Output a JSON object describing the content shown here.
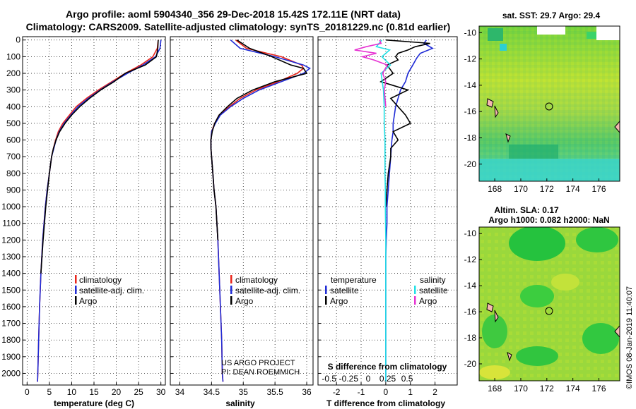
{
  "title_line1": "Argo profile: aoml 5904340_356 29-Dec-2018 15.42S 172.11E (NRT data)",
  "title_line2": "Climatology: CARS2009. Satellite-adjusted climatology: synTS_20181229.nc (0.81d earlier)",
  "colors": {
    "climatology": "#e8241a",
    "satellite": "#1f2bd6",
    "argo": "#000000",
    "sat_salinity": "#22e0e6",
    "argo_salinity": "#e632d2"
  },
  "depth_ticks": [
    "0",
    "100",
    "200",
    "300",
    "400",
    "500",
    "600",
    "700",
    "800",
    "900",
    "1000",
    "1100",
    "1200",
    "1300",
    "1400",
    "1500",
    "1600",
    "1700",
    "1800",
    "1900",
    "2000"
  ],
  "legend": {
    "climatology": "climatology",
    "satellite_adj": "satellite-adj. clim.",
    "argo": "Argo"
  },
  "diff_legend": {
    "temperature": "temperature",
    "salinity": "salinity",
    "satellite": "satellite",
    "argo": "Argo"
  },
  "credits": {
    "line1": "US ARGO PROJECT",
    "line2": "PI: DEAN ROEMMICH"
  },
  "map_sst": {
    "title": "sat. SST: 29.7 Argo: 29.4",
    "yticks": [
      "-10",
      "-12",
      "-14",
      "-16",
      "-18",
      "-20"
    ],
    "xticks": [
      "168",
      "170",
      "172",
      "174",
      "176"
    ],
    "marker": {
      "lon": 172.11,
      "lat": -15.42
    }
  },
  "map_sla": {
    "title1": "Altim. SLA: 0.17",
    "title2": "Argo h1000: 0.082 h2000: NaN",
    "yticks": [
      "-10",
      "-12",
      "-14",
      "-16",
      "-18",
      "-20"
    ],
    "xticks": [
      "168",
      "170",
      "172",
      "174",
      "176"
    ],
    "marker": {
      "lon": 172.11,
      "lat": -15.42
    }
  },
  "imos_stamp": "©IMOS 08-Jan-2019 11:40:07",
  "chart_data": [
    {
      "type": "line",
      "xlabel": "temperature (deg C)",
      "xlim": [
        -1,
        31
      ],
      "ylim": [
        2070,
        -20
      ],
      "xticks": [
        "0",
        "5",
        "10",
        "15",
        "20",
        "25",
        "30"
      ],
      "depth": [
        0,
        50,
        100,
        150,
        200,
        250,
        300,
        350,
        400,
        450,
        500,
        550,
        600,
        650,
        700,
        800,
        900,
        1000,
        1200,
        1400,
        1600,
        1800,
        2000,
        2050
      ],
      "series": [
        {
          "name": "climatology",
          "values": [
            29.4,
            29.2,
            28.2,
            25.5,
            22.0,
            19.0,
            16.0,
            13.3,
            11.0,
            9.5,
            8.0,
            7.0,
            6.4,
            5.9,
            5.5,
            5.0,
            4.5,
            4.1,
            3.5,
            3.1,
            2.8,
            2.6,
            2.4,
            2.35
          ]
        },
        {
          "name": "satellite-adj. clim.",
          "values": [
            30.0,
            29.8,
            28.8,
            26.0,
            22.5,
            19.3,
            16.4,
            13.7,
            11.4,
            9.8,
            8.3,
            7.2,
            6.5,
            6.0,
            5.5,
            5.0,
            4.5,
            4.1,
            3.5,
            3.1,
            2.8,
            2.6,
            2.4,
            2.35
          ]
        },
        {
          "name": "Argo",
          "values": [
            29.4,
            29.3,
            29.0,
            26.5,
            22.0,
            19.5,
            16.5,
            14.0,
            11.8,
            10.0,
            8.5,
            7.3,
            6.5,
            5.9,
            5.5,
            5.0,
            4.6,
            4.2,
            3.6,
            3.1
          ]
        }
      ],
      "argo_depth": [
        0,
        50,
        100,
        150,
        200,
        250,
        300,
        350,
        400,
        450,
        500,
        550,
        600,
        650,
        700,
        800,
        900,
        1000,
        1200,
        1400
      ]
    },
    {
      "type": "line",
      "xlabel": "salinity",
      "xlim": [
        33.85,
        36.1
      ],
      "ylim": [
        2070,
        -20
      ],
      "xticks": [
        "34",
        "34.5",
        "35",
        "35.5",
        "36"
      ],
      "depth": [
        0,
        50,
        100,
        150,
        170,
        200,
        250,
        300,
        350,
        400,
        450,
        500,
        550,
        600,
        650,
        700,
        800,
        900,
        1000,
        1200,
        1400,
        1600,
        1800,
        2000,
        2050
      ],
      "series": [
        {
          "name": "climatology",
          "values": [
            34.88,
            35.05,
            35.6,
            35.92,
            35.95,
            35.85,
            35.55,
            35.2,
            34.95,
            34.78,
            34.62,
            34.55,
            34.5,
            34.49,
            34.49,
            34.5,
            34.52,
            34.54,
            34.57,
            34.6,
            34.62,
            34.64,
            34.66,
            34.67,
            34.68
          ]
        },
        {
          "name": "satellite-adj. clim.",
          "values": [
            34.8,
            34.95,
            35.5,
            35.95,
            36.05,
            35.95,
            35.6,
            35.25,
            35.0,
            34.8,
            34.64,
            34.56,
            34.5,
            34.49,
            34.49,
            34.5,
            34.52,
            34.54,
            34.57,
            34.6,
            34.62,
            34.64,
            34.66,
            34.67,
            34.68
          ]
        },
        {
          "name": "Argo",
          "values": [
            34.9,
            35.1,
            35.45,
            35.75,
            35.95,
            36.0,
            35.5,
            35.15,
            34.9,
            34.75,
            34.62,
            34.55,
            34.51,
            34.49,
            34.49,
            34.5,
            34.52,
            34.54,
            34.57,
            34.6
          ]
        }
      ],
      "argo_depth": [
        0,
        50,
        100,
        150,
        170,
        200,
        250,
        300,
        350,
        400,
        450,
        500,
        550,
        600,
        650,
        700,
        800,
        900,
        1000,
        1200,
        1400
      ]
    },
    {
      "type": "line",
      "xlabel": "T difference from climatology",
      "xlabel_top": "S difference from climatology",
      "xlim": [
        -2.75,
        2.9
      ],
      "ylim": [
        2070,
        -20
      ],
      "xticks": [
        "-2",
        "-1",
        "0",
        "1",
        "2"
      ],
      "xticks_s": [
        "-0.5",
        "-0.25",
        "0",
        "0.25",
        "0.5"
      ],
      "series": [
        {
          "name": "temperature satellite",
          "depth": [
            0,
            20,
            50,
            80,
            110,
            150,
            200,
            250,
            300,
            350,
            400,
            450,
            500,
            550,
            600,
            700,
            800,
            900,
            1000,
            1100,
            1200,
            1300,
            1400,
            1500,
            1600,
            1700,
            1800,
            1900,
            2000,
            2050
          ],
          "values": [
            1.65,
            1.55,
            1.9,
            1.4,
            1.25,
            1.1,
            0.9,
            0.8,
            0.6,
            0.5,
            0.4,
            0.35,
            0.3,
            0.3,
            0.25,
            0.2,
            0.15,
            0.1,
            0.05,
            0.05,
            0.02,
            0.0,
            0.0,
            0.0,
            0.0,
            0.0,
            0.0,
            0.0,
            0.0,
            0.0
          ]
        },
        {
          "name": "temperature Argo",
          "depth": [
            0,
            20,
            40,
            60,
            80,
            100,
            120,
            150,
            200,
            250,
            300,
            350,
            400,
            450,
            500,
            550,
            600,
            650,
            700,
            800,
            900,
            1000
          ],
          "values": [
            0.0,
            1.8,
            1.2,
            0.9,
            0.5,
            0.4,
            0.5,
            0.05,
            0.3,
            -0.2,
            0.9,
            0.2,
            0.5,
            0.8,
            1.0,
            0.3,
            0.5,
            0.2,
            0.2,
            0.1,
            0.05,
            0.0
          ]
        },
        {
          "name": "salinity satellite",
          "depth": [
            0,
            40,
            60,
            80,
            100,
            150,
            200,
            300,
            400,
            500,
            600,
            700,
            800,
            900,
            1000,
            1200,
            1400,
            1600,
            1800,
            2000,
            2050
          ],
          "values": [
            -0.05,
            -0.12,
            0.05,
            0.0,
            -0.05,
            0.06,
            -0.06,
            -0.03,
            -0.02,
            -0.02,
            -0.01,
            -0.01,
            -0.01,
            -0.005,
            -0.005,
            0.0,
            0.0,
            0.0,
            0.0,
            0.0,
            0.0
          ]
        },
        {
          "name": "salinity Argo",
          "depth": [
            0,
            20,
            40,
            60,
            80,
            100,
            120,
            150,
            200,
            250,
            300,
            350,
            400
          ],
          "values": [
            -0.08,
            -0.06,
            -0.25,
            -0.4,
            -0.12,
            -0.3,
            -0.15,
            0.02,
            -0.04,
            0.0,
            -0.02,
            -0.01,
            0.0
          ]
        }
      ]
    }
  ]
}
